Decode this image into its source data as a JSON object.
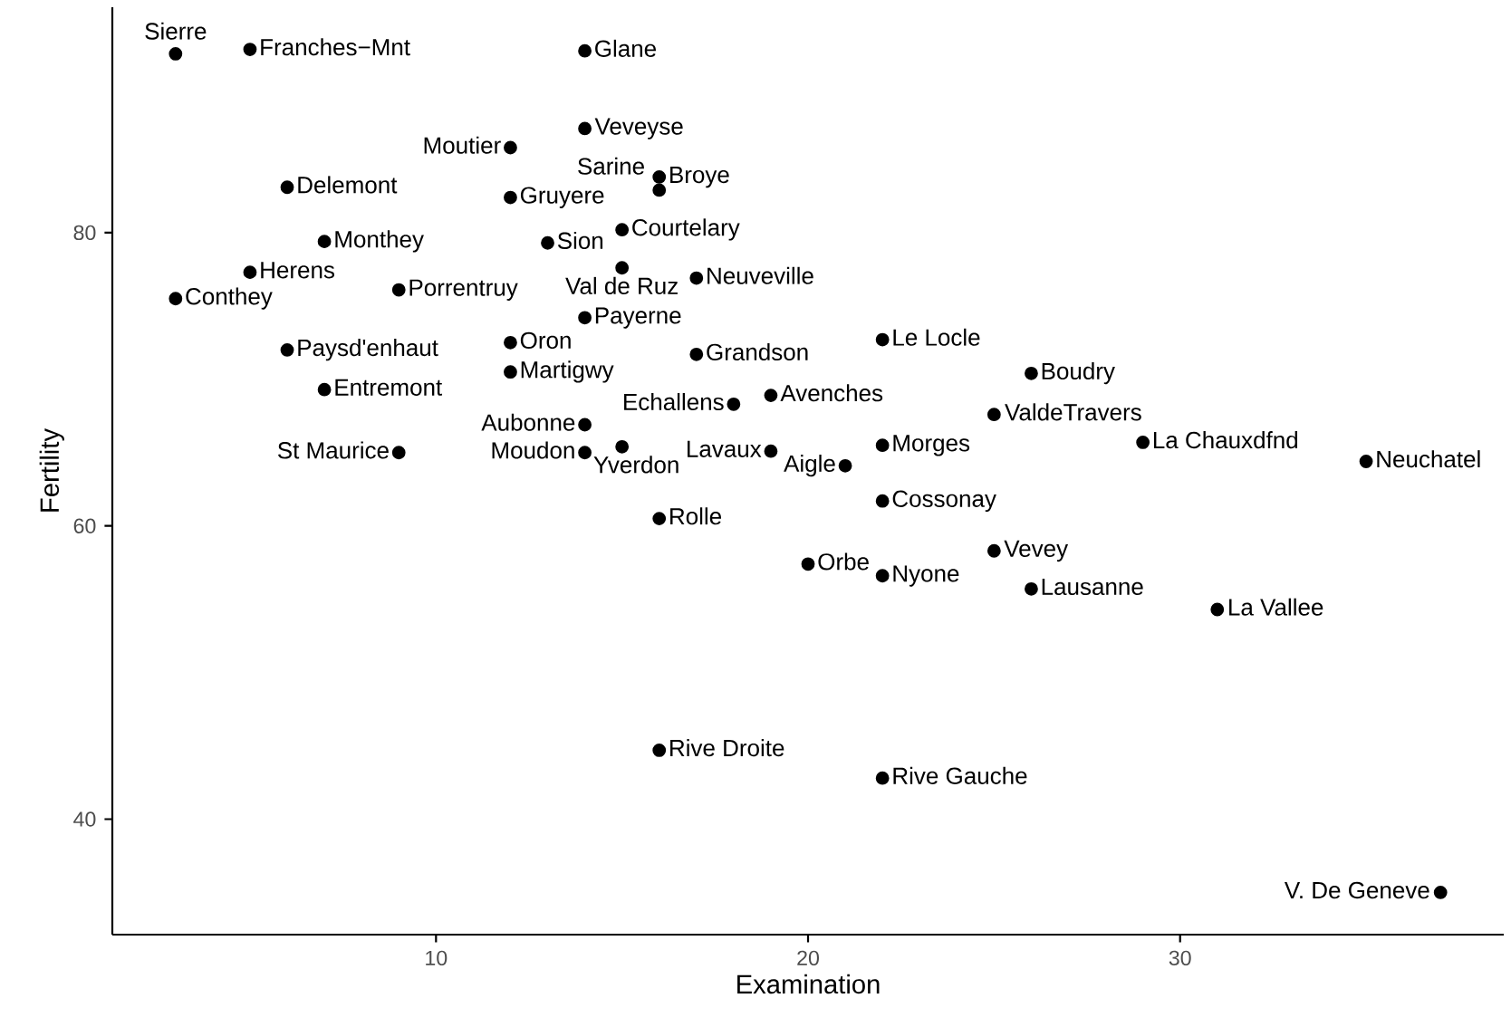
{
  "chart_data": {
    "type": "scatter",
    "xlabel": "Examination",
    "ylabel": "Fertility",
    "color": "#000000",
    "marker": "circle",
    "x": [
      15,
      6,
      5,
      12,
      17,
      9,
      16,
      14,
      12,
      16,
      14,
      21,
      14,
      19,
      22,
      18,
      17,
      26,
      31,
      19,
      22,
      14,
      22,
      20,
      12,
      14,
      6,
      16,
      25,
      15,
      3,
      7,
      5,
      12,
      7,
      9,
      3,
      13,
      26,
      29,
      22,
      35,
      15,
      25,
      37,
      16,
      22
    ],
    "values": [
      80.2,
      83.1,
      92.5,
      85.8,
      76.9,
      76.1,
      83.8,
      92.4,
      82.4,
      82.9,
      87.1,
      64.1,
      66.9,
      68.9,
      61.7,
      68.3,
      71.7,
      55.7,
      54.3,
      65.1,
      65.5,
      65.0,
      56.6,
      57.4,
      72.5,
      74.2,
      72.0,
      60.5,
      58.3,
      65.4,
      75.5,
      69.3,
      77.3,
      70.5,
      79.4,
      65.0,
      92.2,
      79.3,
      70.4,
      65.7,
      72.7,
      64.4,
      77.6,
      67.6,
      35.0,
      44.7,
      42.8
    ],
    "xlim": [
      1.3,
      38.7
    ],
    "ylim": [
      32.125,
      95.375
    ],
    "xticks": [
      10,
      20,
      30
    ],
    "yticks": [
      40,
      60,
      80
    ],
    "annotations": [
      {
        "text": "Courtelary",
        "x": 15,
        "y": 80.2
      },
      {
        "text": "Delemont",
        "x": 6,
        "y": 83.1
      },
      {
        "text": "Franches−Mnt",
        "x": 5,
        "y": 92.5
      },
      {
        "text": "Moutier",
        "x": 12,
        "y": 85.8
      },
      {
        "text": "Neuveville",
        "x": 17,
        "y": 76.9
      },
      {
        "text": "Porrentruy",
        "x": 9,
        "y": 76.1
      },
      {
        "text": "Broye",
        "x": 16,
        "y": 83.8
      },
      {
        "text": "Glane",
        "x": 14,
        "y": 92.4
      },
      {
        "text": "Gruyere",
        "x": 12,
        "y": 82.4
      },
      {
        "text": "Sarine",
        "x": 16,
        "y": 82.9
      },
      {
        "text": "Veveyse",
        "x": 14,
        "y": 87.1
      },
      {
        "text": "Aigle",
        "x": 21,
        "y": 64.1
      },
      {
        "text": "Aubonne",
        "x": 14,
        "y": 66.9
      },
      {
        "text": "Avenches",
        "x": 19,
        "y": 68.9
      },
      {
        "text": "Cossonay",
        "x": 22,
        "y": 61.7
      },
      {
        "text": "Echallens",
        "x": 18,
        "y": 68.3
      },
      {
        "text": "Grandson",
        "x": 17,
        "y": 71.7
      },
      {
        "text": "Lausanne",
        "x": 26,
        "y": 55.7
      },
      {
        "text": "La Vallee",
        "x": 31,
        "y": 54.3
      },
      {
        "text": "Lavaux",
        "x": 19,
        "y": 65.1
      },
      {
        "text": "Morges",
        "x": 22,
        "y": 65.5
      },
      {
        "text": "Moudon",
        "x": 14,
        "y": 65.0
      },
      {
        "text": "Nyone",
        "x": 22,
        "y": 56.6
      },
      {
        "text": "Orbe",
        "x": 20,
        "y": 57.4
      },
      {
        "text": "Oron",
        "x": 12,
        "y": 72.5
      },
      {
        "text": "Payerne",
        "x": 14,
        "y": 74.2
      },
      {
        "text": "Paysd'enhaut",
        "x": 6,
        "y": 72.0
      },
      {
        "text": "Rolle",
        "x": 16,
        "y": 60.5
      },
      {
        "text": "Vevey",
        "x": 25,
        "y": 58.3
      },
      {
        "text": "Yverdon",
        "x": 15,
        "y": 65.4
      },
      {
        "text": "Conthey",
        "x": 3,
        "y": 75.5
      },
      {
        "text": "Entremont",
        "x": 7,
        "y": 69.3
      },
      {
        "text": "Herens",
        "x": 5,
        "y": 77.3
      },
      {
        "text": "Martigwy",
        "x": 12,
        "y": 70.5
      },
      {
        "text": "Monthey",
        "x": 7,
        "y": 79.4
      },
      {
        "text": "St Maurice",
        "x": 9,
        "y": 65.0
      },
      {
        "text": "Sierre",
        "x": 3,
        "y": 92.2
      },
      {
        "text": "Sion",
        "x": 13,
        "y": 79.3
      },
      {
        "text": "Boudry",
        "x": 26,
        "y": 70.4
      },
      {
        "text": "La Chauxdfnd",
        "x": 29,
        "y": 65.7
      },
      {
        "text": "Le Locle",
        "x": 22,
        "y": 72.7
      },
      {
        "text": "Neuchatel",
        "x": 35,
        "y": 64.4
      },
      {
        "text": "Val de Ruz",
        "x": 15,
        "y": 77.6
      },
      {
        "text": "ValdeTravers",
        "x": 25,
        "y": 67.6
      },
      {
        "text": "V. De Geneve",
        "x": 37,
        "y": 35.0
      },
      {
        "text": "Rive Droite",
        "x": 16,
        "y": 44.7
      },
      {
        "text": "Rive Gauche",
        "x": 22,
        "y": 42.8
      }
    ]
  }
}
